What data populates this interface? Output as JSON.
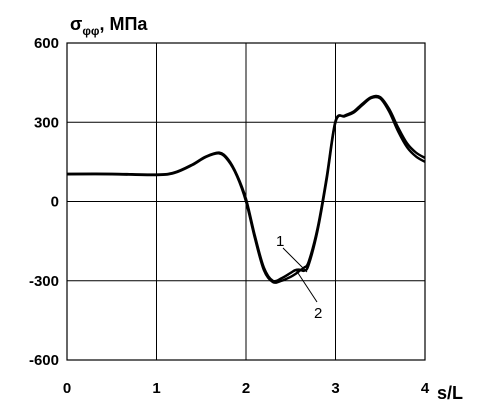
{
  "chart_data": {
    "type": "line",
    "ylabel_main": "σ",
    "ylabel_sub": "φφ",
    "ylabel_unit": ", МПа",
    "xlabel": "s/L",
    "xlim": [
      0,
      4
    ],
    "ylim": [
      -600,
      600
    ],
    "x_ticks": [
      "0",
      "1",
      "2",
      "3",
      "4"
    ],
    "y_ticks": [
      "600",
      "300",
      "0",
      "-300",
      "-600"
    ],
    "grid": true,
    "series": [
      {
        "name": "1",
        "x": [
          0,
          0.5,
          1.0,
          1.2,
          1.4,
          1.55,
          1.7,
          1.8,
          1.9,
          2.0,
          2.1,
          2.2,
          2.3,
          2.4,
          2.5,
          2.55,
          2.6,
          2.65,
          2.7,
          2.8,
          2.9,
          3.0,
          3.1,
          3.2,
          3.3,
          3.4,
          3.5,
          3.6,
          3.7,
          3.8,
          3.9,
          4.0
        ],
        "y": [
          105,
          105,
          102,
          110,
          140,
          170,
          185,
          160,
          100,
          10,
          -130,
          -250,
          -300,
          -290,
          -270,
          -260,
          -258,
          -262,
          -240,
          -110,
          80,
          300,
          325,
          340,
          370,
          395,
          395,
          350,
          280,
          220,
          185,
          165
        ]
      },
      {
        "name": "2",
        "x": [
          0,
          0.5,
          1.0,
          1.2,
          1.4,
          1.55,
          1.7,
          1.8,
          1.9,
          2.0,
          2.1,
          2.2,
          2.3,
          2.4,
          2.5,
          2.55,
          2.6,
          2.65,
          2.7,
          2.8,
          2.9,
          3.0,
          3.1,
          3.2,
          3.3,
          3.4,
          3.5,
          3.6,
          3.7,
          3.8,
          3.9,
          4.0
        ],
        "y": [
          103,
          103,
          100,
          108,
          138,
          168,
          182,
          155,
          95,
          0,
          -140,
          -260,
          -305,
          -300,
          -285,
          -275,
          -262,
          -250,
          -228,
          -100,
          90,
          305,
          322,
          336,
          365,
          392,
          390,
          340,
          265,
          205,
          170,
          150
        ]
      }
    ],
    "annotations": [
      "1",
      "2"
    ]
  }
}
